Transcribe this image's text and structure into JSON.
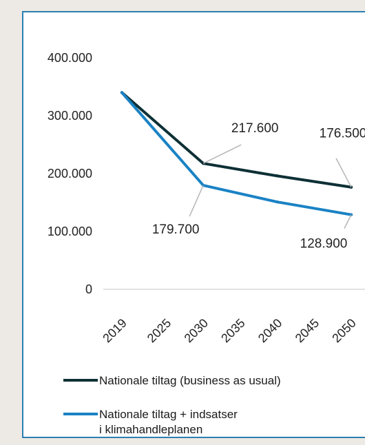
{
  "chart_data": {
    "type": "line",
    "title": "",
    "xlabel": "",
    "ylabel": "",
    "categories": [
      "2019",
      "2025",
      "2030",
      "2035",
      "2040",
      "2045",
      "2050"
    ],
    "x": [
      2019,
      2030,
      2040,
      2050
    ],
    "ylim": [
      0,
      400000
    ],
    "y_ticks": [
      {
        "value": 0,
        "label": "0"
      },
      {
        "value": 100000,
        "label": "100.000"
      },
      {
        "value": 200000,
        "label": "200.000"
      },
      {
        "value": 300000,
        "label": "300.000"
      },
      {
        "value": 400000,
        "label": "400.000"
      }
    ],
    "grid": false,
    "legend_position": "bottom",
    "series": [
      {
        "name": "Nationale tiltag (business as usual)",
        "color": "#0d3035",
        "x": [
          2019,
          2030,
          2040,
          2050
        ],
        "values": [
          340000,
          217600,
          196000,
          176500
        ]
      },
      {
        "name": "Nationale tiltag + indsatser i klimahandleplanen",
        "color": "#1a82c4",
        "x": [
          2019,
          2030,
          2040,
          2050
        ],
        "values": [
          340000,
          179700,
          151000,
          128900
        ]
      }
    ],
    "annotations": [
      {
        "series": 0,
        "x": 2030,
        "text": "217.600"
      },
      {
        "series": 0,
        "x": 2050,
        "text": "176.500"
      },
      {
        "series": 1,
        "x": 2030,
        "text": "179.700"
      },
      {
        "series": 1,
        "x": 2050,
        "text": "128.900"
      }
    ]
  }
}
